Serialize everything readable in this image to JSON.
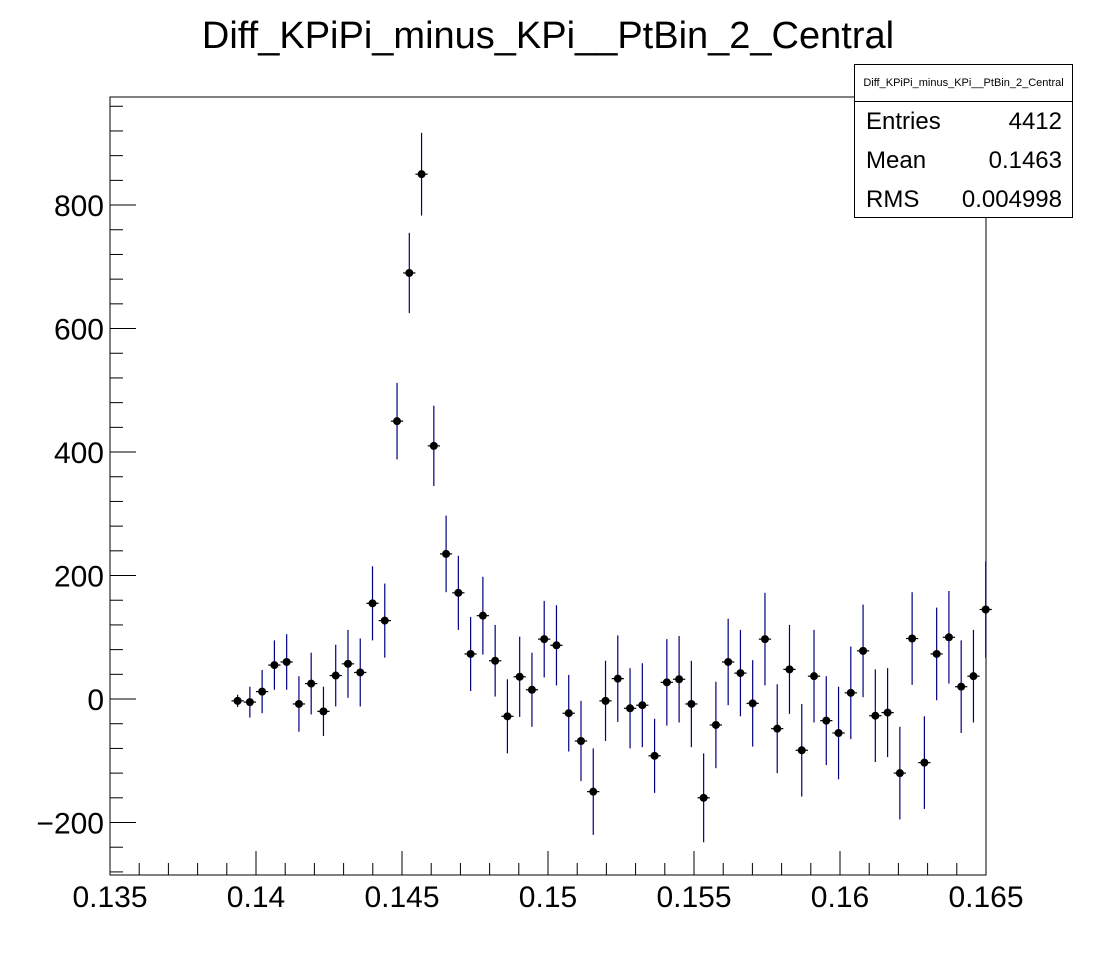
{
  "chart_data": {
    "type": "scatter",
    "title": "Diff_KPiPi_minus_KPi__PtBin_2_Central",
    "xlabel": "",
    "ylabel": "",
    "xlim": [
      0.135,
      0.165
    ],
    "ylim": [
      -285,
      975
    ],
    "x_ticks": [
      "0.135",
      "0.14",
      "0.145",
      "0.15",
      "0.155",
      "0.16",
      "0.165"
    ],
    "y_ticks": [
      "−200",
      "0",
      "200",
      "400",
      "600",
      "800"
    ],
    "x_tick_values": [
      0.135,
      0.14,
      0.145,
      0.15,
      0.155,
      0.16,
      0.165
    ],
    "y_tick_values": [
      -200,
      0,
      200,
      400,
      600,
      800
    ],
    "grid": false,
    "marker_color": "#000000",
    "error_bar_color": "#000080",
    "bin_width": 0.00042,
    "series": [
      {
        "x": [
          0.13937,
          0.13979,
          0.14021,
          0.14063,
          0.14105,
          0.14147,
          0.14189,
          0.14231,
          0.14273,
          0.14315,
          0.14357,
          0.14399,
          0.14441,
          0.14483,
          0.14525,
          0.14567,
          0.14609,
          0.14651,
          0.14693,
          0.14735,
          0.14777,
          0.14819,
          0.14861,
          0.14903,
          0.14945,
          0.14987,
          0.15029,
          0.15071,
          0.15113,
          0.15155,
          0.15197,
          0.15239,
          0.15281,
          0.15323,
          0.15365,
          0.15407,
          0.15449,
          0.15491,
          0.15533,
          0.15575,
          0.15617,
          0.15659,
          0.15701,
          0.15743,
          0.15785,
          0.15827,
          0.15869,
          0.15911,
          0.15953,
          0.15995,
          0.16037,
          0.16079,
          0.16121,
          0.16163,
          0.16205,
          0.16247,
          0.16289,
          0.16331,
          0.16373,
          0.16415,
          0.16457,
          0.16499
        ],
        "y": [
          -3,
          -5,
          12,
          55,
          60,
          -8,
          25,
          -20,
          38,
          57,
          43,
          155,
          127,
          450,
          690,
          850,
          410,
          235,
          172,
          73,
          135,
          62,
          -28,
          36,
          15,
          97,
          87,
          -23,
          -68,
          -150,
          -3,
          33,
          -15,
          -10,
          -92,
          27,
          32,
          -8,
          -160,
          -42,
          60,
          42,
          -7,
          97,
          -48,
          48,
          -83,
          37,
          -35,
          -55,
          10,
          78,
          -27,
          -22,
          -120,
          98,
          -103,
          73,
          100,
          20,
          37,
          145
        ],
        "err": [
          10,
          25,
          35,
          40,
          45,
          45,
          50,
          40,
          50,
          55,
          55,
          60,
          60,
          62,
          65,
          67,
          65,
          62,
          60,
          60,
          63,
          58,
          60,
          65,
          60,
          62,
          65,
          62,
          65,
          70,
          65,
          70,
          65,
          68,
          60,
          70,
          70,
          70,
          72,
          70,
          70,
          70,
          70,
          75,
          72,
          72,
          75,
          75,
          72,
          75,
          75,
          75,
          75,
          72,
          75,
          75,
          75,
          75,
          75,
          75,
          75,
          78
        ]
      }
    ]
  },
  "stats_box": {
    "title": "Diff_KPiPi_minus_KPi__PtBin_2_Central",
    "rows": [
      {
        "label": "Entries",
        "value": "4412"
      },
      {
        "label": "Mean",
        "value": "0.1463"
      },
      {
        "label": "RMS",
        "value": "0.004998"
      }
    ]
  }
}
